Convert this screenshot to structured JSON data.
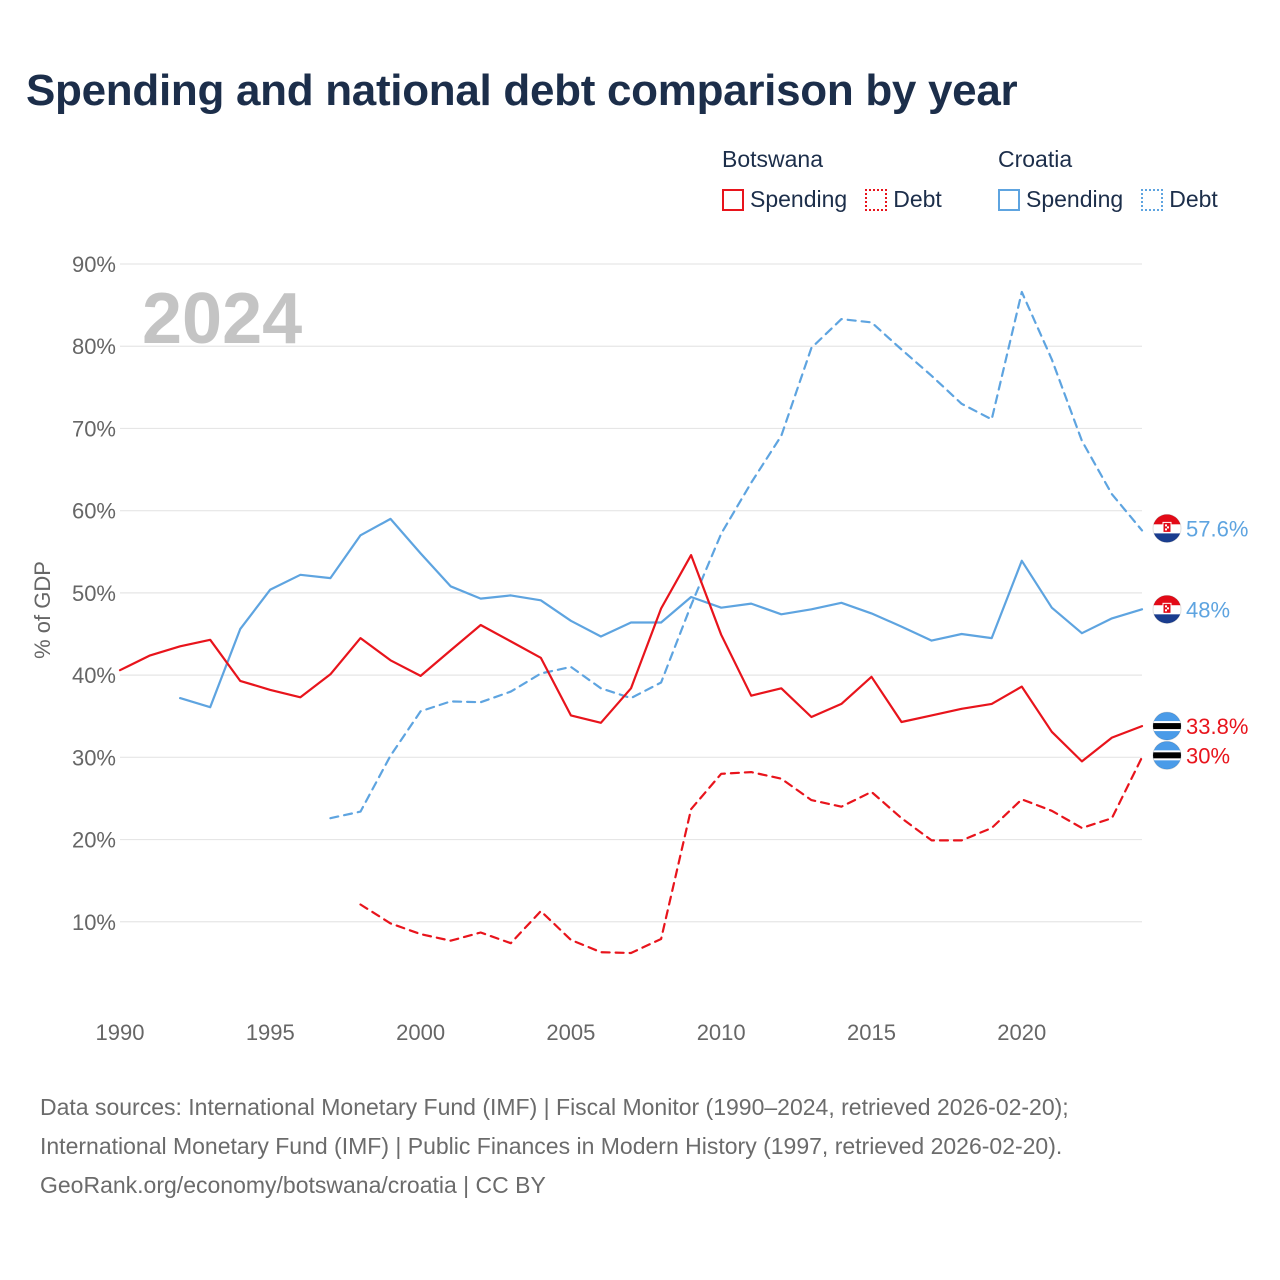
{
  "title": "Spending and national debt comparison by year",
  "legend": {
    "groups": [
      {
        "country": "Botswana",
        "color": "#e8141c",
        "items": [
          {
            "label": "Spending",
            "style": "solid"
          },
          {
            "label": "Debt",
            "style": "dotted"
          }
        ]
      },
      {
        "country": "Croatia",
        "color": "#5ea4e0",
        "items": [
          {
            "label": "Spending",
            "style": "solid"
          },
          {
            "label": "Debt",
            "style": "dotted"
          }
        ]
      }
    ]
  },
  "footer": {
    "lines": [
      "Data sources: International Monetary Fund (IMF) | Fiscal Monitor (1990–2024, retrieved 2026-02-20);",
      "International Monetary Fund (IMF) | Public Finances in Modern History (1997, retrieved 2026-02-20).",
      "GeoRank.org/economy/botswana/croatia | CC BY"
    ]
  },
  "chart_data": {
    "type": "line",
    "year_watermark": "2024",
    "ylabel": "% of GDP",
    "xlabel": "",
    "xlim": [
      1990,
      2024
    ],
    "ylim": [
      0,
      90
    ],
    "x_ticks": [
      "1990",
      "1995",
      "2000",
      "2005",
      "2010",
      "2015",
      "2020"
    ],
    "x_tick_values": [
      1990,
      1995,
      2000,
      2005,
      2010,
      2015,
      2020
    ],
    "y_ticks": [
      "10%",
      "20%",
      "30%",
      "40%",
      "50%",
      "60%",
      "70%",
      "80%",
      "90%"
    ],
    "y_tick_values": [
      10,
      20,
      30,
      40,
      50,
      60,
      70,
      80,
      90
    ],
    "grid": true,
    "series": [
      {
        "name": "Croatia Debt",
        "country": "Croatia",
        "metric": "Debt",
        "color": "#5ea4e0",
        "dashed": true,
        "flag": "croatia",
        "end_label": "57.6%",
        "x": [
          1997,
          1998,
          1999,
          2000,
          2001,
          2002,
          2003,
          2004,
          2005,
          2006,
          2007,
          2008,
          2009,
          2010,
          2011,
          2012,
          2013,
          2014,
          2015,
          2016,
          2017,
          2018,
          2019,
          2020,
          2021,
          2022,
          2023,
          2024
        ],
        "values": [
          22.6,
          23.4,
          30.2,
          35.6,
          36.8,
          36.7,
          38.0,
          40.2,
          41.0,
          38.4,
          37.2,
          39.1,
          48.5,
          57.2,
          63.4,
          69.1,
          79.8,
          83.3,
          82.9,
          79.6,
          76.4,
          73.0,
          71.1,
          86.6,
          78.4,
          68.5,
          62.0,
          57.6
        ]
      },
      {
        "name": "Croatia Spending",
        "country": "Croatia",
        "metric": "Spending",
        "color": "#5ea4e0",
        "dashed": false,
        "flag": "croatia",
        "end_label": "48%",
        "x": [
          1992,
          1993,
          1994,
          1995,
          1996,
          1997,
          1998,
          1999,
          2000,
          2001,
          2002,
          2003,
          2004,
          2005,
          2006,
          2007,
          2008,
          2009,
          2010,
          2011,
          2012,
          2013,
          2014,
          2015,
          2016,
          2017,
          2018,
          2019,
          2020,
          2021,
          2022,
          2023,
          2024
        ],
        "values": [
          37.2,
          36.1,
          45.6,
          50.4,
          52.2,
          51.8,
          57.0,
          59.0,
          54.8,
          50.8,
          49.3,
          49.7,
          49.1,
          46.6,
          44.7,
          46.4,
          46.4,
          49.5,
          48.2,
          48.7,
          47.4,
          48.0,
          48.8,
          47.5,
          45.9,
          44.2,
          45.0,
          44.5,
          53.9,
          48.2,
          45.1,
          46.9,
          48.0
        ]
      },
      {
        "name": "Botswana Spending",
        "country": "Botswana",
        "metric": "Spending",
        "color": "#e8141c",
        "dashed": false,
        "flag": "botswana",
        "end_label": "33.8%",
        "x": [
          1990,
          1991,
          1992,
          1993,
          1994,
          1995,
          1996,
          1997,
          1998,
          1999,
          2000,
          2001,
          2002,
          2003,
          2004,
          2005,
          2006,
          2007,
          2008,
          2009,
          2010,
          2011,
          2012,
          2013,
          2014,
          2015,
          2016,
          2017,
          2018,
          2019,
          2020,
          2021,
          2022,
          2023,
          2024
        ],
        "values": [
          40.6,
          42.4,
          43.5,
          44.3,
          39.3,
          38.2,
          37.3,
          40.1,
          44.5,
          41.8,
          39.9,
          43.0,
          46.1,
          44.1,
          42.1,
          35.1,
          34.2,
          38.4,
          48.1,
          54.6,
          44.9,
          37.5,
          38.4,
          34.9,
          36.5,
          39.8,
          34.3,
          35.1,
          35.9,
          36.5,
          38.6,
          33.1,
          29.5,
          32.4,
          33.8
        ]
      },
      {
        "name": "Botswana Debt",
        "country": "Botswana",
        "metric": "Debt",
        "color": "#e8141c",
        "dashed": true,
        "flag": "botswana",
        "end_label": "30%",
        "x": [
          1998,
          1999,
          2000,
          2001,
          2002,
          2003,
          2004,
          2005,
          2006,
          2007,
          2008,
          2009,
          2010,
          2011,
          2012,
          2013,
          2014,
          2015,
          2016,
          2017,
          2018,
          2019,
          2020,
          2021,
          2022,
          2023,
          2024
        ],
        "values": [
          12.1,
          9.8,
          8.5,
          7.7,
          8.7,
          7.4,
          11.3,
          7.8,
          6.3,
          6.2,
          7.9,
          23.7,
          28.0,
          28.2,
          27.4,
          24.8,
          24.0,
          25.8,
          22.6,
          19.9,
          19.9,
          21.4,
          24.9,
          23.5,
          21.4,
          22.6,
          30.0
        ]
      }
    ]
  }
}
